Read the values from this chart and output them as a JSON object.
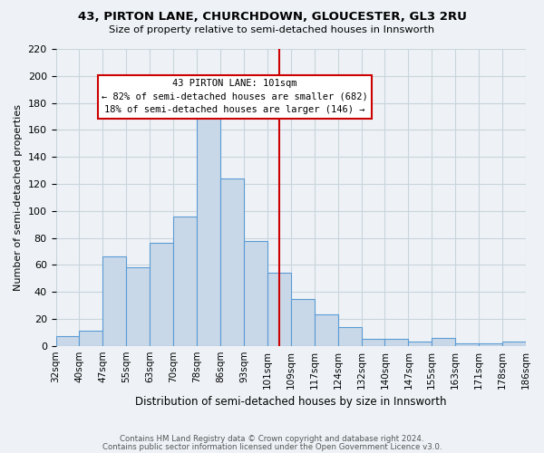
{
  "title": "43, PIRTON LANE, CHURCHDOWN, GLOUCESTER, GL3 2RU",
  "subtitle": "Size of property relative to semi-detached houses in Innsworth",
  "xlabel": "Distribution of semi-detached houses by size in Innsworth",
  "ylabel": "Number of semi-detached properties",
  "footnote1": "Contains HM Land Registry data © Crown copyright and database right 2024.",
  "footnote2": "Contains public sector information licensed under the Open Government Licence v3.0.",
  "bin_labels": [
    "32sqm",
    "40sqm",
    "47sqm",
    "55sqm",
    "63sqm",
    "70sqm",
    "78sqm",
    "86sqm",
    "93sqm",
    "101sqm",
    "109sqm",
    "117sqm",
    "124sqm",
    "132sqm",
    "140sqm",
    "147sqm",
    "155sqm",
    "163sqm",
    "171sqm",
    "178sqm",
    "186sqm"
  ],
  "values": [
    7,
    11,
    66,
    58,
    76,
    96,
    170,
    124,
    78,
    54,
    35,
    23,
    14,
    5,
    5,
    3,
    6,
    2,
    2,
    3
  ],
  "bar_color": "#c8d8e8",
  "bar_edge_color": "#5b9bd5",
  "marker_bin_index": 9,
  "marker_line_color": "#cc0000",
  "box_text_line1": "43 PIRTON LANE: 101sqm",
  "box_text_line2": "← 82% of semi-detached houses are smaller (682)",
  "box_text_line3": "18% of semi-detached houses are larger (146) →",
  "box_edge_color": "#cc0000",
  "ylim": [
    0,
    220
  ],
  "yticks": [
    0,
    20,
    40,
    60,
    80,
    100,
    120,
    140,
    160,
    180,
    200,
    220
  ],
  "grid_color": "#c8d4dc",
  "background_color": "#eef2f6"
}
